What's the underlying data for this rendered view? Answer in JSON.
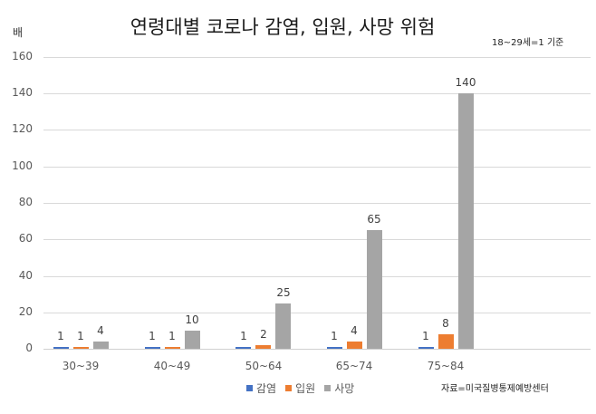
{
  "chart_data": {
    "type": "bar",
    "title": "연령대별 코로나 감염, 입원, 사망 위험",
    "subtitle": "18~29세=1 기준",
    "ylabel": "배",
    "xlabel": "",
    "ylim": [
      0,
      160
    ],
    "yticks": [
      0,
      20,
      40,
      60,
      80,
      100,
      120,
      140,
      160
    ],
    "grid": true,
    "legend_position": "bottom",
    "categories": [
      "30~39",
      "40~49",
      "50~64",
      "65~74",
      "75~84"
    ],
    "series": [
      {
        "name": "감염",
        "color": "#4472c4",
        "values": [
          1,
          1,
          1,
          1,
          1
        ]
      },
      {
        "name": "입원",
        "color": "#ed7d31",
        "values": [
          1,
          1,
          2,
          4,
          8
        ]
      },
      {
        "name": "사망",
        "color": "#a5a5a5",
        "values": [
          4,
          10,
          25,
          65,
          140
        ]
      }
    ],
    "annotations": [
      "자료=미국질병통제예방센터"
    ]
  },
  "labels": {
    "title": "연령대별 코로나 감염, 입원, 사망 위험",
    "baseline_note": "18~29세=1 기준",
    "unit": "배",
    "source": "자료=미국질병통제예방센터"
  }
}
